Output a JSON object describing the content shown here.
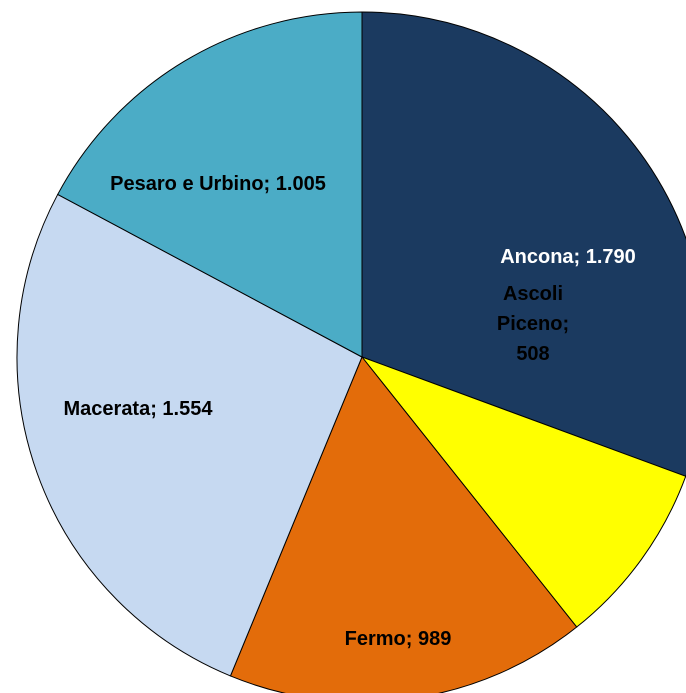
{
  "chart_data": {
    "type": "pie",
    "categories": [
      "Ancona",
      "Ascoli Piceno",
      "Fermo",
      "Macerata",
      "Pesaro e Urbino"
    ],
    "values": [
      1790,
      508,
      989,
      1554,
      1005
    ],
    "value_labels": [
      "1.790",
      "508",
      "989",
      "1.554",
      "1.005"
    ],
    "label_separator": "; ",
    "colors": [
      "#1b3a60",
      "#ffff00",
      "#e36c0a",
      "#c6d9f1",
      "#4bacc6"
    ],
    "label_colors": [
      "#ffffff",
      "#000000",
      "#000000",
      "#000000",
      "#000000"
    ]
  }
}
